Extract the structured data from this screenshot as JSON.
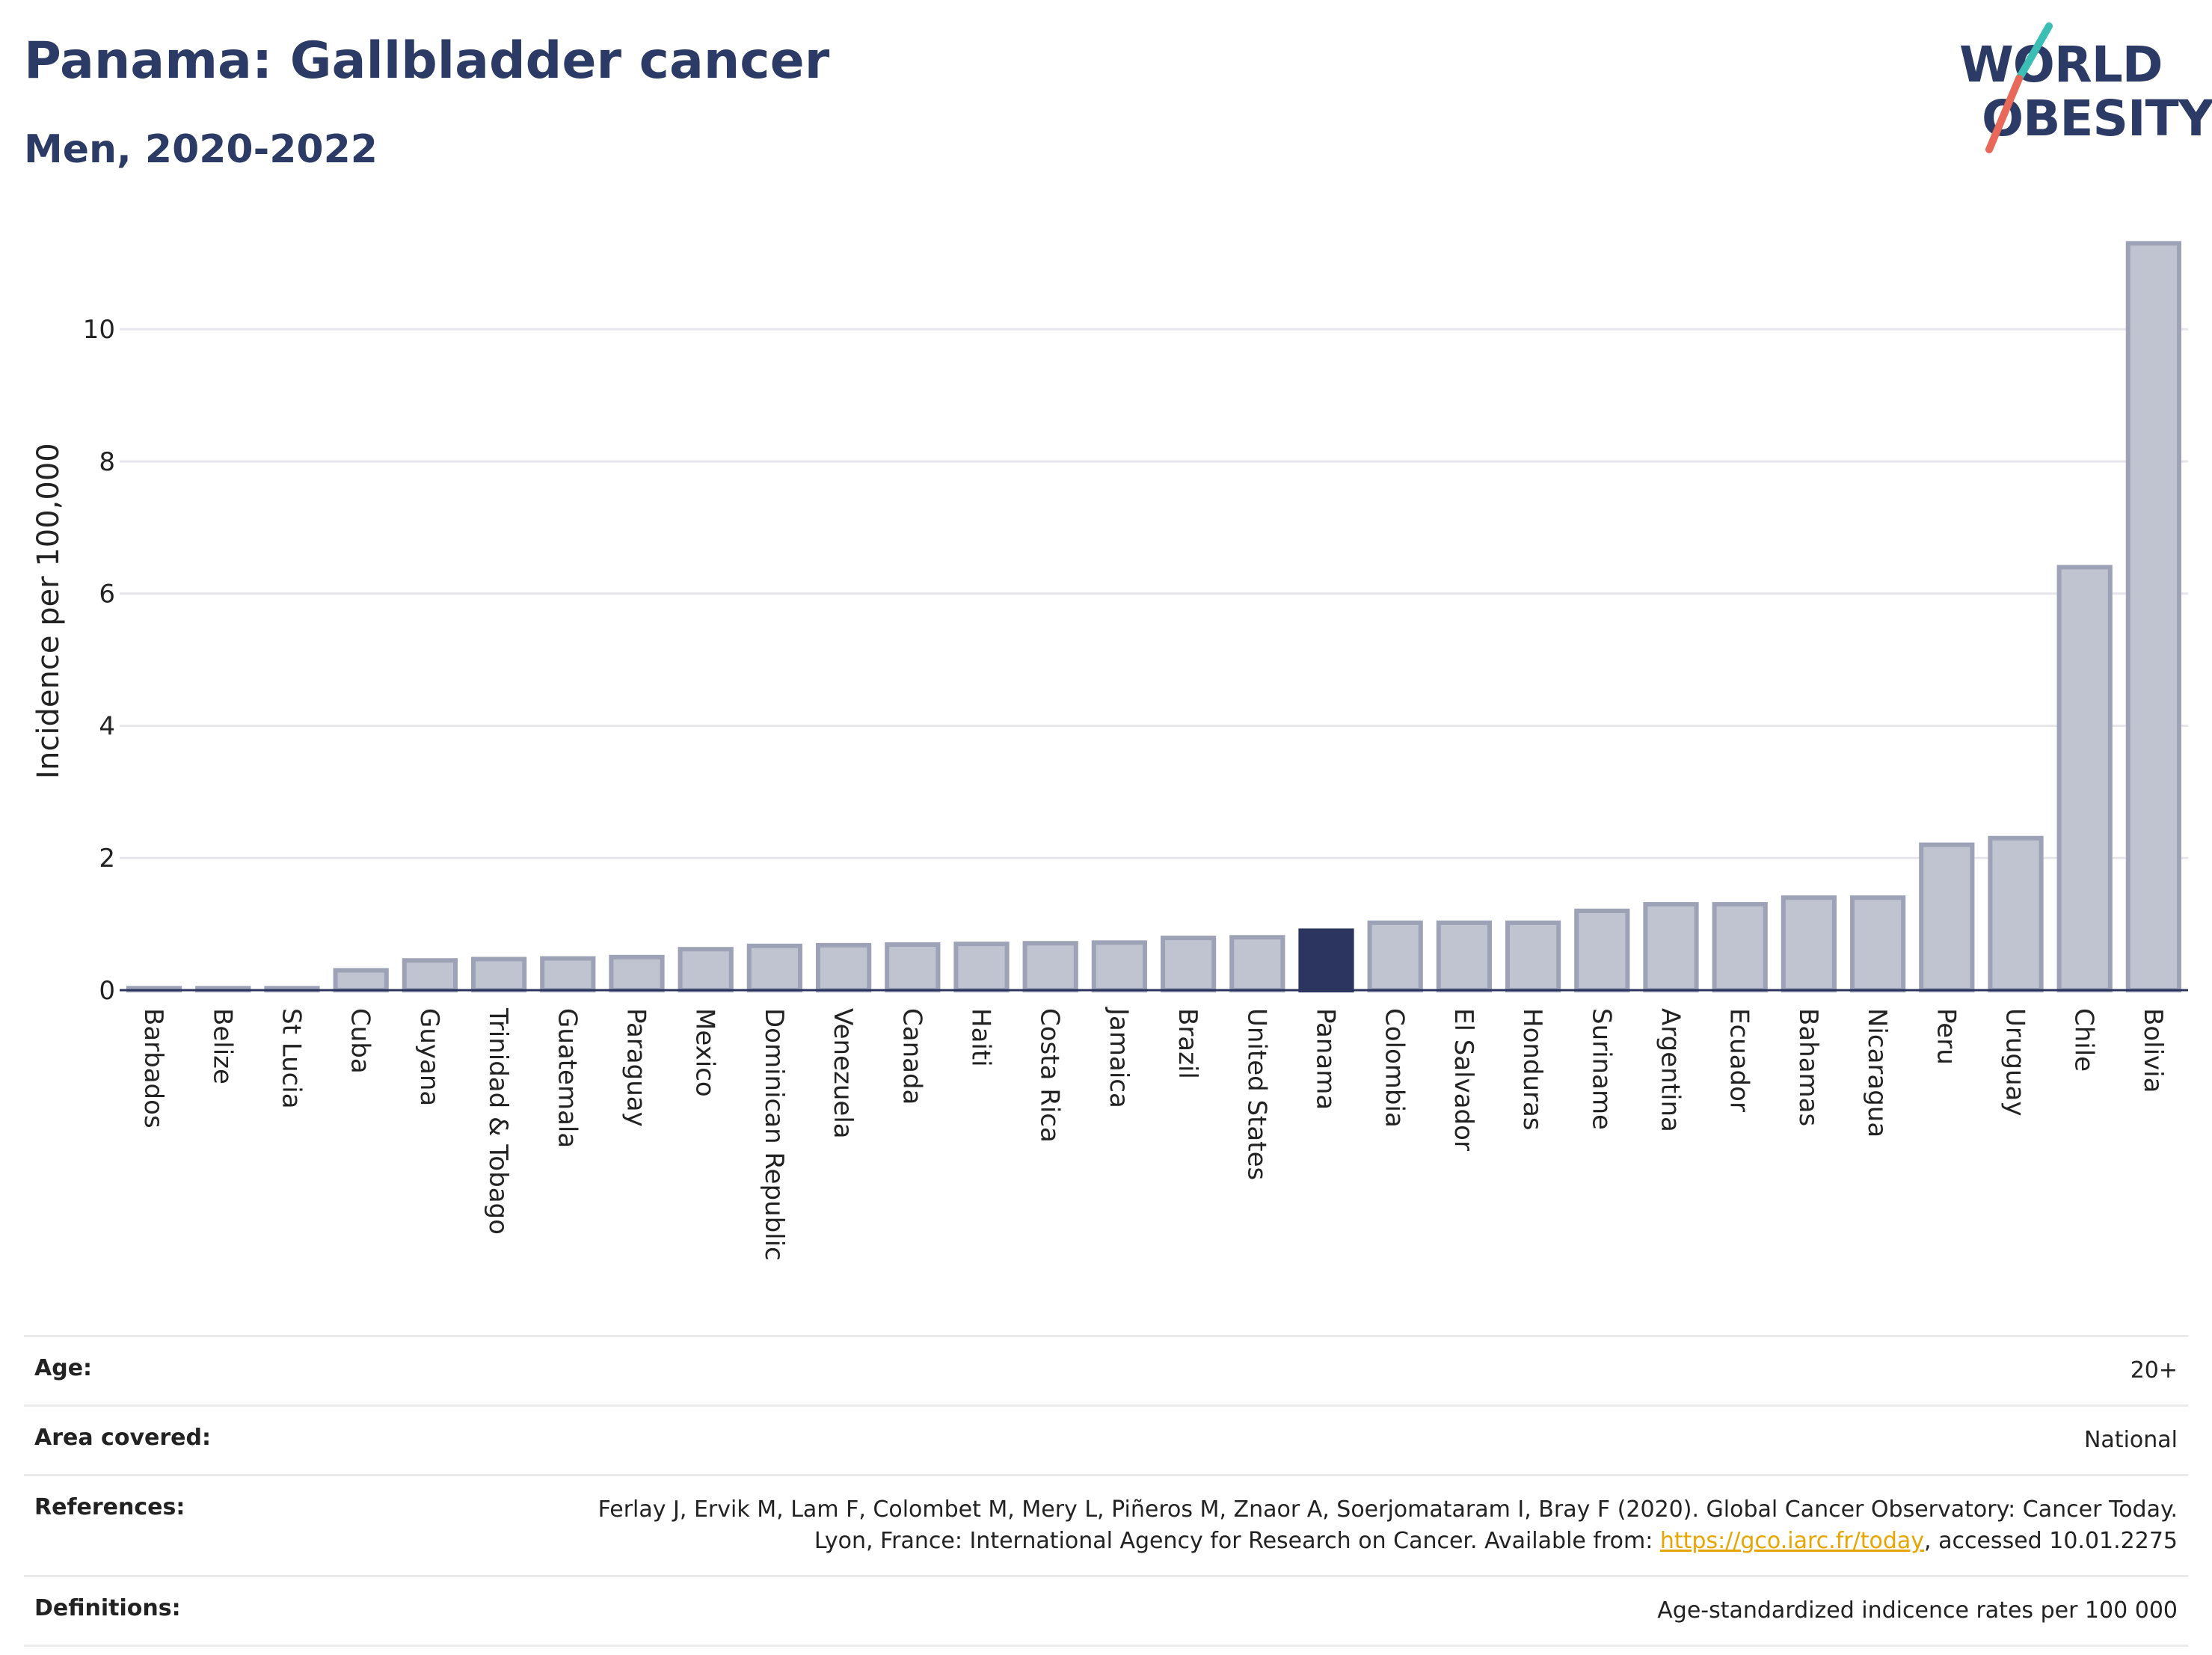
{
  "header": {
    "title": "Panama: Gallbladder cancer",
    "subtitle": "Men, 2020-2022"
  },
  "logo": {
    "line1": "WORLD",
    "line2": "OBESITY"
  },
  "chart_data": {
    "type": "bar",
    "title": "Panama: Gallbladder cancer",
    "subtitle": "Men, 2020-2022",
    "ylabel": "Incidence per 100,000",
    "xlabel": "",
    "ylim": [
      0,
      11.7
    ],
    "yticks": [
      0,
      2,
      4,
      6,
      8,
      10
    ],
    "grid": true,
    "highlight": "Panama",
    "colors": {
      "bar": "#c0c3d0",
      "bar_edge": "#9da2b6",
      "highlight": "#2b3560",
      "axis": "#2b3560",
      "grid": "#e6e6ec"
    },
    "categories": [
      "Barbados",
      "Belize",
      "St Lucia",
      "Cuba",
      "Guyana",
      "Trinidad & Tobago",
      "Guatemala",
      "Paraguay",
      "Mexico",
      "Dominican Republic",
      "Venezuela",
      "Canada",
      "Haiti",
      "Costa Rica",
      "Jamaica",
      "Brazil",
      "United States",
      "Panama",
      "Colombia",
      "El Salvador",
      "Honduras",
      "Suriname",
      "Argentina",
      "Ecuador",
      "Bahamas",
      "Nicaragua",
      "Peru",
      "Uruguay",
      "Chile",
      "Bolivia"
    ],
    "values": [
      0.03,
      0.03,
      0.03,
      0.3,
      0.45,
      0.47,
      0.48,
      0.5,
      0.62,
      0.67,
      0.68,
      0.69,
      0.7,
      0.71,
      0.72,
      0.79,
      0.8,
      0.9,
      1.02,
      1.02,
      1.02,
      1.2,
      1.3,
      1.3,
      1.4,
      1.4,
      2.2,
      2.3,
      6.4,
      11.3
    ]
  },
  "info": {
    "rows": [
      {
        "key": "Age:",
        "value": "20+"
      },
      {
        "key": "Area covered:",
        "value": "National"
      },
      {
        "key": "References:",
        "value_prefix": "Ferlay J, Ervik M, Lam F, Colombet M, Mery L, Piñeros M, Znaor A, Soerjomataram I, Bray F (2020). Global Cancer Observatory: Cancer Today. Lyon, France: International Agency for Research on Cancer. Available from: ",
        "link": "https://gco.iarc.fr/today",
        "value_suffix": ", accessed 10.01.2275"
      },
      {
        "key": "Definitions:",
        "value": "Age-standardized indicence rates per 100 000"
      }
    ]
  }
}
